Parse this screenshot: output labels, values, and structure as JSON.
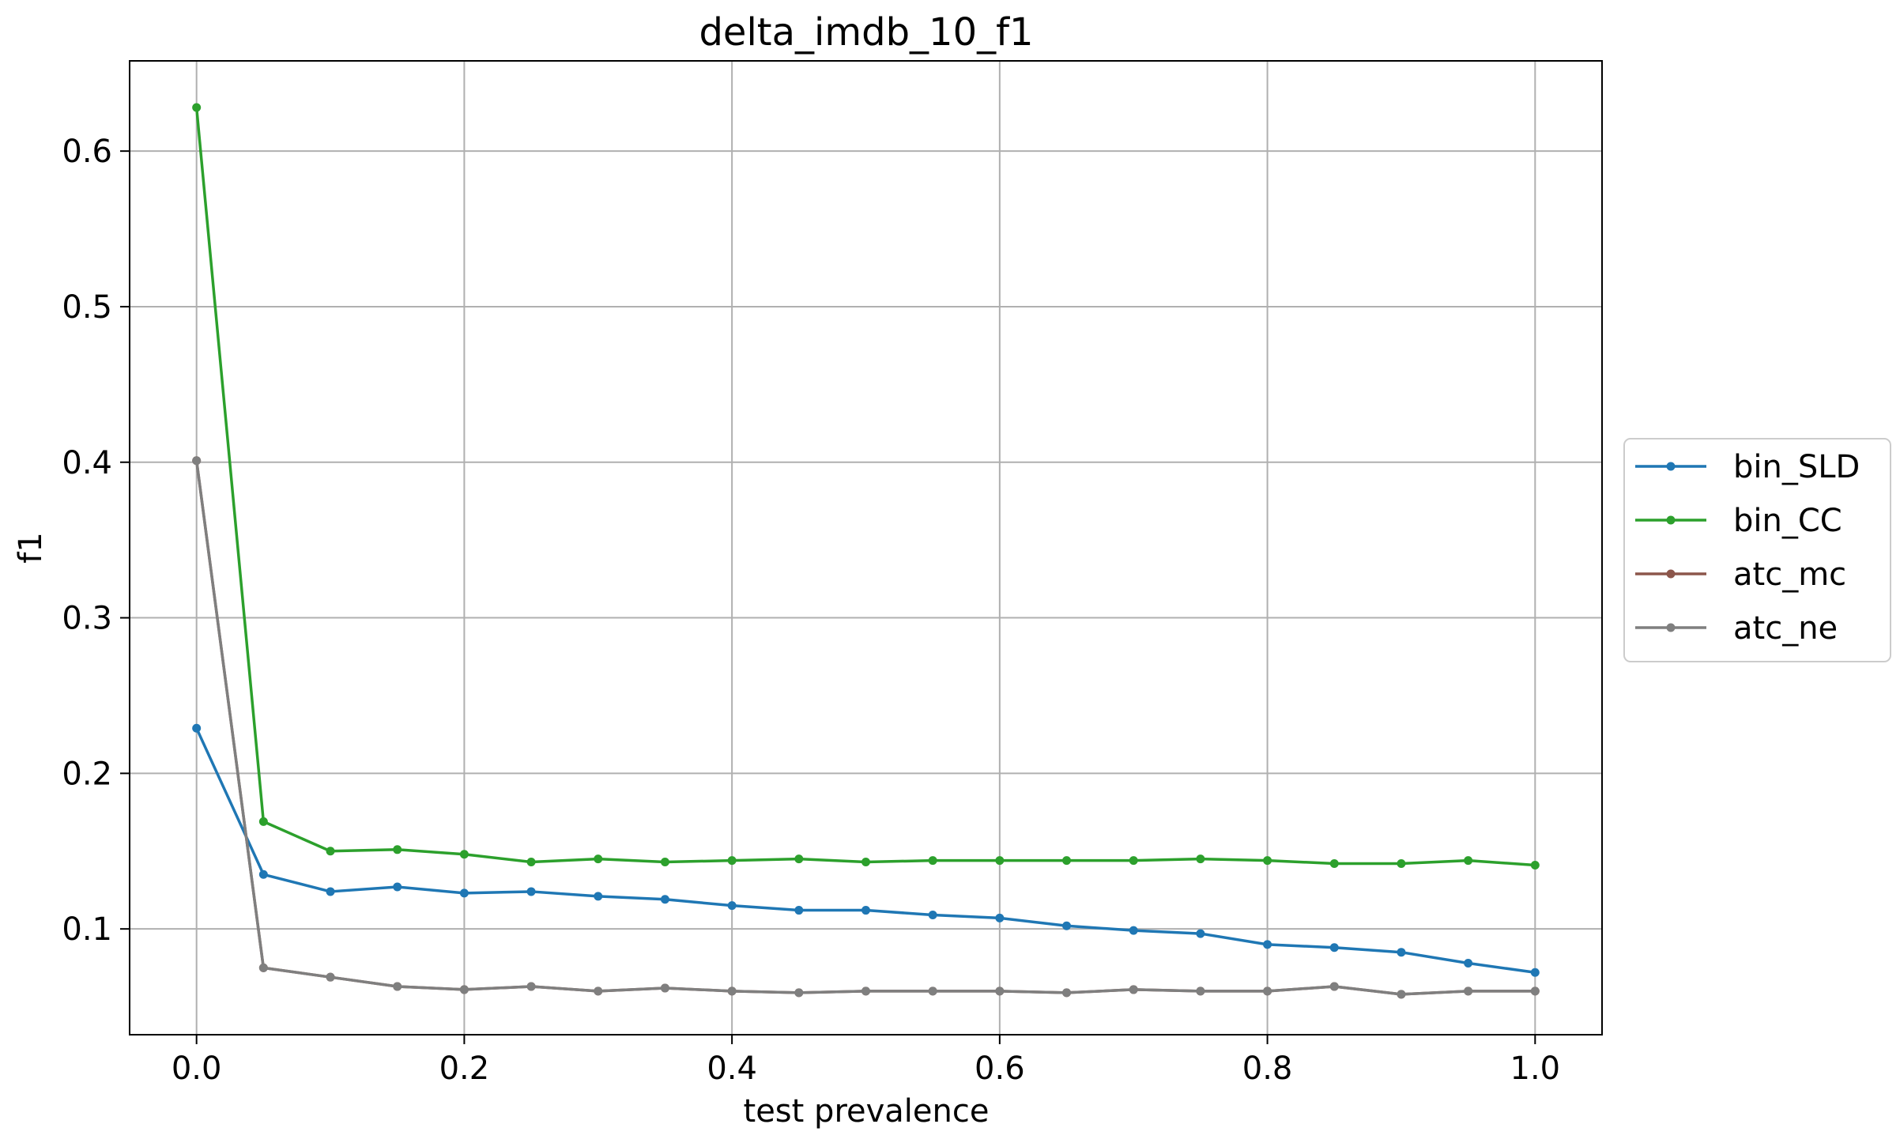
{
  "chart_data": {
    "type": "line",
    "title": "delta_imdb_10_f1",
    "xlabel": "test prevalence",
    "ylabel": "f1",
    "xlim": [
      -0.05,
      1.05
    ],
    "ylim": [
      0.032,
      0.658
    ],
    "xticks": [
      {
        "value": 0.0,
        "label": "0.0"
      },
      {
        "value": 0.2,
        "label": "0.2"
      },
      {
        "value": 0.4,
        "label": "0.4"
      },
      {
        "value": 0.6,
        "label": "0.6"
      },
      {
        "value": 0.8,
        "label": "0.8"
      },
      {
        "value": 1.0,
        "label": "1.0"
      }
    ],
    "yticks": [
      {
        "value": 0.1,
        "label": "0.1"
      },
      {
        "value": 0.2,
        "label": "0.2"
      },
      {
        "value": 0.3,
        "label": "0.3"
      },
      {
        "value": 0.4,
        "label": "0.4"
      },
      {
        "value": 0.5,
        "label": "0.5"
      },
      {
        "value": 0.6,
        "label": "0.6"
      }
    ],
    "grid": true,
    "legend_position": "center-right-outside",
    "x": [
      0.0,
      0.05,
      0.1,
      0.15,
      0.2,
      0.25,
      0.3,
      0.35,
      0.4,
      0.45,
      0.5,
      0.55,
      0.6,
      0.65,
      0.7,
      0.75,
      0.8,
      0.85,
      0.9,
      0.95,
      1.0
    ],
    "series": [
      {
        "name": "bin_SLD",
        "color": "#1f77b4",
        "values": [
          0.229,
          0.135,
          0.124,
          0.127,
          0.123,
          0.124,
          0.121,
          0.119,
          0.115,
          0.112,
          0.112,
          0.109,
          0.107,
          0.102,
          0.099,
          0.097,
          0.09,
          0.088,
          0.085,
          0.078,
          0.072
        ]
      },
      {
        "name": "bin_CC",
        "color": "#2ca02c",
        "values": [
          0.628,
          0.169,
          0.15,
          0.151,
          0.148,
          0.143,
          0.145,
          0.143,
          0.144,
          0.145,
          0.143,
          0.144,
          0.144,
          0.144,
          0.144,
          0.145,
          0.144,
          0.142,
          0.142,
          0.144,
          0.141
        ]
      },
      {
        "name": "atc_mc",
        "color": "#8c564b",
        "values": [
          0.401,
          0.075,
          0.069,
          0.063,
          0.061,
          0.063,
          0.06,
          0.062,
          0.06,
          0.059,
          0.06,
          0.06,
          0.06,
          0.059,
          0.061,
          0.06,
          0.06,
          0.063,
          0.058,
          0.06,
          0.06
        ]
      },
      {
        "name": "atc_ne",
        "color": "#7f7f7f",
        "values": [
          0.401,
          0.075,
          0.069,
          0.063,
          0.061,
          0.063,
          0.06,
          0.062,
          0.06,
          0.059,
          0.06,
          0.06,
          0.06,
          0.059,
          0.061,
          0.06,
          0.06,
          0.063,
          0.058,
          0.06,
          0.06
        ]
      }
    ]
  }
}
